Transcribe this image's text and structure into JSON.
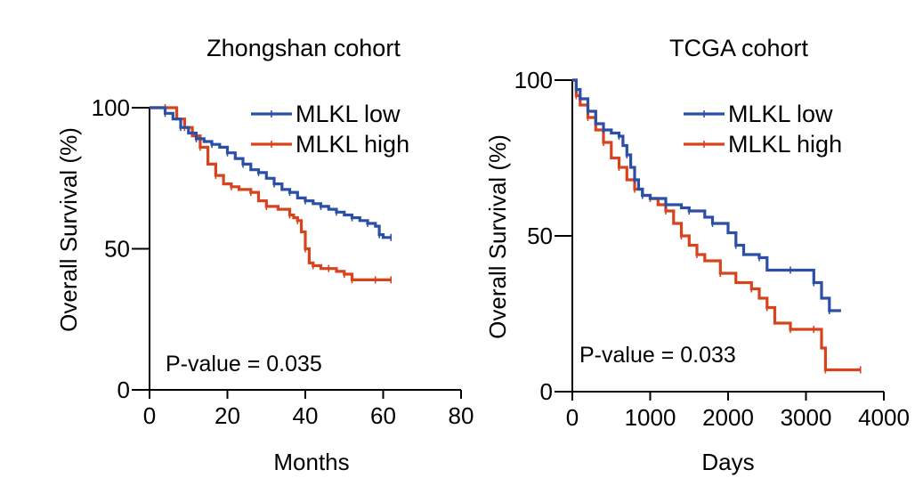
{
  "chart_data": [
    {
      "type": "line",
      "subtype": "kaplan-meier",
      "title": "Zhongshan cohort",
      "xlabel": "Months",
      "ylabel": "Overall Survival (%)",
      "xlim": [
        0,
        80
      ],
      "ylim": [
        0,
        100
      ],
      "xticks": [
        0,
        20,
        40,
        60,
        80
      ],
      "yticks": [
        0,
        50,
        100
      ],
      "grid": false,
      "legend_position": "top-right",
      "annotation": "P-value = 0.035",
      "series": [
        {
          "name": "MLKL low",
          "color": "#2b4fa6",
          "x": [
            0,
            4,
            6,
            8,
            10,
            12,
            14,
            16,
            18,
            20,
            22,
            24,
            26,
            28,
            30,
            32,
            34,
            36,
            38,
            40,
            42,
            44,
            46,
            48,
            50,
            52,
            54,
            56,
            58,
            59,
            60,
            62
          ],
          "y": [
            100,
            98,
            96,
            93,
            91,
            89,
            88,
            87,
            86,
            84,
            82,
            80,
            78,
            77,
            75,
            73,
            71,
            70,
            68,
            67,
            66,
            65,
            64,
            63,
            62,
            61,
            60,
            59,
            58,
            55,
            54,
            54
          ]
        },
        {
          "name": "MLKL high",
          "color": "#d8431e",
          "x": [
            0,
            4,
            7,
            9,
            11,
            13,
            15,
            17,
            19,
            21,
            23,
            26,
            28,
            30,
            33,
            36,
            37,
            38,
            39,
            40,
            41,
            42,
            44,
            46,
            48,
            50,
            51,
            52,
            55,
            58,
            60,
            62
          ],
          "y": [
            100,
            100,
            96,
            93,
            90,
            86,
            80,
            76,
            73,
            72,
            71,
            70,
            67,
            65,
            64,
            62,
            61,
            60,
            56,
            50,
            45,
            44,
            43,
            43,
            42,
            41,
            41,
            39,
            39,
            39,
            39,
            39
          ]
        }
      ]
    },
    {
      "type": "line",
      "subtype": "kaplan-meier",
      "title": "TCGA cohort",
      "xlabel": "Days",
      "ylabel": "Overall Survival (%)",
      "xlim": [
        0,
        4000
      ],
      "ylim": [
        0,
        100
      ],
      "xticks": [
        0,
        1000,
        2000,
        3000,
        4000
      ],
      "yticks": [
        0,
        50,
        100
      ],
      "grid": false,
      "legend_position": "top-right",
      "annotation": "P-value = 0.033",
      "series": [
        {
          "name": "MLKL low",
          "color": "#2b4fa6",
          "x": [
            0,
            50,
            100,
            200,
            300,
            400,
            500,
            600,
            650,
            700,
            750,
            800,
            850,
            900,
            1000,
            1200,
            1400,
            1500,
            1700,
            1800,
            2000,
            2100,
            2200,
            2400,
            2500,
            2800,
            3000,
            3100,
            3200,
            3300,
            3450
          ],
          "y": [
            100,
            97,
            94,
            90,
            86,
            84,
            83,
            82,
            79,
            76,
            72,
            68,
            65,
            63,
            62,
            60,
            59,
            58,
            56,
            54,
            51,
            47,
            44,
            43,
            39,
            39,
            39,
            35,
            30,
            26,
            26
          ]
        },
        {
          "name": "MLKL high",
          "color": "#d8431e",
          "x": [
            0,
            50,
            100,
            200,
            300,
            400,
            500,
            600,
            700,
            800,
            900,
            1000,
            1100,
            1200,
            1300,
            1400,
            1500,
            1600,
            1700,
            1900,
            2100,
            2300,
            2400,
            2500,
            2600,
            2800,
            3000,
            3100,
            3200,
            3250,
            3400,
            3700
          ],
          "y": [
            100,
            95,
            92,
            88,
            84,
            80,
            75,
            72,
            68,
            65,
            63,
            62,
            60,
            58,
            54,
            50,
            47,
            44,
            42,
            38,
            35,
            33,
            30,
            27,
            22,
            20,
            20,
            20,
            14,
            7,
            7,
            7
          ]
        }
      ]
    }
  ]
}
